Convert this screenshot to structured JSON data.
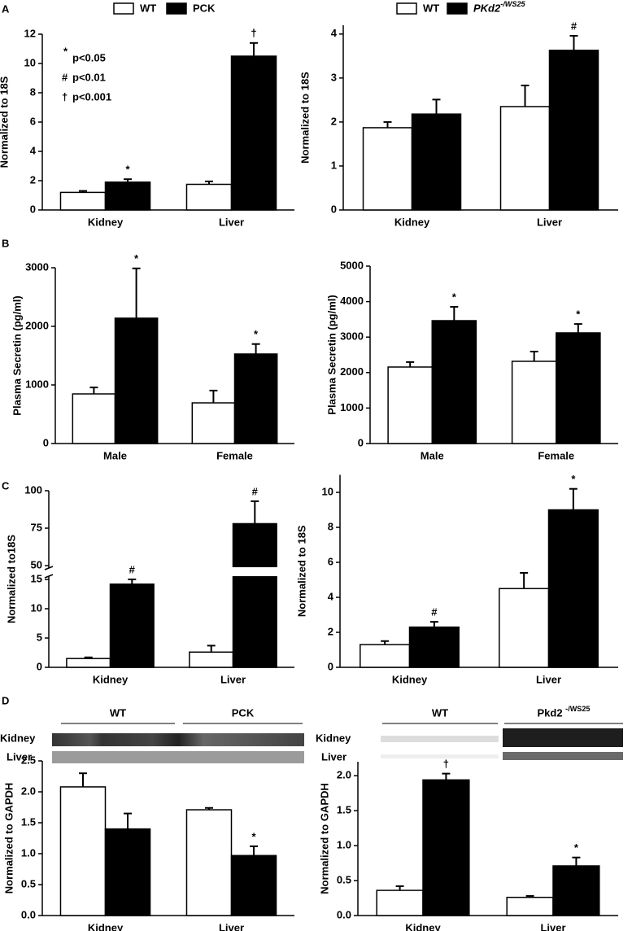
{
  "chart_data": [
    {
      "type": "bar",
      "panel": "A",
      "ylabel": "Normalized to 18S",
      "categories": [
        "Kidney",
        "Liver"
      ],
      "series": [
        {
          "name": "WT",
          "color": "#ffffff",
          "values": [
            1.2,
            1.75
          ],
          "errors": [
            0.1,
            0.2
          ]
        },
        {
          "name": "PCK",
          "color": "#000000",
          "values": [
            1.9,
            10.5
          ],
          "errors": [
            0.2,
            0.9
          ],
          "markers": [
            "*",
            "†"
          ]
        }
      ],
      "ylim": [
        0,
        12
      ],
      "yticks": [
        0,
        2,
        4,
        6,
        8,
        10,
        12
      ],
      "notes": [
        {
          "symbol": "*",
          "text": "p<0.05"
        },
        {
          "symbol": "#",
          "text": "p<0.01"
        },
        {
          "symbol": "†",
          "text": "p<0.001"
        }
      ]
    },
    {
      "type": "bar",
      "ylabel": "Normalized to 18S",
      "categories": [
        "Kidney",
        "Liver"
      ],
      "series": [
        {
          "name": "WT",
          "color": "#ffffff",
          "values": [
            1.87,
            2.35
          ],
          "errors": [
            0.13,
            0.48
          ]
        },
        {
          "name": "PKd2-/WS25",
          "color": "#000000",
          "values": [
            2.18,
            3.63
          ],
          "errors": [
            0.33,
            0.33
          ],
          "markers": [
            null,
            "#"
          ]
        }
      ],
      "ylim": [
        0,
        4.2
      ],
      "yticks": [
        0,
        1,
        2,
        3,
        4
      ]
    },
    {
      "type": "bar",
      "panel": "B",
      "ylabel": "Plasma Secretin (pg/ml)",
      "categories": [
        "Male",
        "Female"
      ],
      "series": [
        {
          "color": "#ffffff",
          "values": [
            847,
            694
          ],
          "errors": [
            110,
            210
          ]
        },
        {
          "color": "#000000",
          "values": [
            2139,
            1528
          ],
          "errors": [
            850,
            170
          ],
          "markers": [
            "*",
            "*"
          ]
        }
      ],
      "ylim": [
        0,
        3000
      ],
      "yticks": [
        0,
        1000,
        2000,
        3000
      ]
    },
    {
      "type": "bar",
      "ylabel": "Plasma Secretin (pg/ml)",
      "categories": [
        "Male",
        "Female"
      ],
      "series": [
        {
          "color": "#ffffff",
          "values": [
            2156,
            2317
          ],
          "errors": [
            140,
            275
          ]
        },
        {
          "color": "#000000",
          "values": [
            3463,
            3119
          ],
          "errors": [
            390,
            250
          ],
          "markers": [
            "*",
            "*"
          ]
        }
      ],
      "ylim": [
        0,
        5000
      ],
      "yticks": [
        0,
        1000,
        2000,
        3000,
        4000,
        5000
      ]
    },
    {
      "type": "bar",
      "panel": "C",
      "ylabel": "Normalized to18S",
      "categories": [
        "Kidney",
        "Liver"
      ],
      "series": [
        {
          "color": "#ffffff",
          "values": [
            1.5,
            2.6
          ],
          "errors": [
            0.2,
            1.1
          ]
        },
        {
          "color": "#000000",
          "values": [
            14.2,
            78
          ],
          "errors": [
            1.0,
            15
          ],
          "markers": [
            "#",
            "#"
          ]
        }
      ],
      "ylim": [
        0,
        100
      ],
      "ybreak": [
        15,
        50
      ],
      "yticks": [
        0,
        5,
        10,
        15,
        50,
        75,
        100
      ]
    },
    {
      "type": "bar",
      "ylabel": "Normalized to 18S",
      "categories": [
        "Kidney",
        "Liver"
      ],
      "series": [
        {
          "color": "#ffffff",
          "values": [
            1.3,
            4.5
          ],
          "errors": [
            0.2,
            0.9
          ]
        },
        {
          "color": "#000000",
          "values": [
            2.3,
            9.0
          ],
          "errors": [
            0.3,
            1.2
          ],
          "markers": [
            "#",
            "*"
          ]
        }
      ],
      "ylim": [
        0,
        11
      ],
      "yticks": [
        0,
        2,
        4,
        6,
        8,
        10
      ]
    },
    {
      "type": "bar",
      "panel": "D",
      "ylabel": "Normalized to GAPDH",
      "categories": [
        "Kidney",
        "Liver"
      ],
      "blot": {
        "groups": [
          "WT",
          "PCK"
        ],
        "rows": [
          "Kidney",
          "Liver"
        ]
      },
      "series": [
        {
          "color": "#ffffff",
          "values": [
            2.08,
            1.71
          ],
          "errors": [
            0.22,
            0.03
          ]
        },
        {
          "color": "#000000",
          "values": [
            1.4,
            0.97
          ],
          "errors": [
            0.25,
            0.15
          ],
          "markers": [
            null,
            "*"
          ]
        }
      ],
      "ylim": [
        0,
        2.5
      ],
      "yticks": [
        {
          "value": 0,
          "label": "0.0"
        },
        {
          "value": 0.5,
          "label": "0.5"
        },
        {
          "value": 1,
          "label": "1.0"
        },
        {
          "value": 1.5,
          "label": "1.5"
        },
        {
          "value": 2,
          "label": "2.0"
        },
        {
          "value": 2.5,
          "label": "2.5"
        }
      ]
    },
    {
      "type": "bar",
      "ylabel": "Normalized to GAPDH",
      "categories": [
        "Kidney",
        "Liver"
      ],
      "blot": {
        "groups": [
          "WT",
          "Pkd2 -/WS25"
        ],
        "rows": [
          "Kidney",
          "Liver"
        ]
      },
      "series": [
        {
          "color": "#ffffff",
          "values": [
            0.36,
            0.26
          ],
          "errors": [
            0.06,
            0.02
          ]
        },
        {
          "color": "#000000",
          "values": [
            1.94,
            0.71
          ],
          "errors": [
            0.09,
            0.12
          ],
          "markers": [
            "†",
            "*"
          ]
        }
      ],
      "ylim": [
        0,
        2.2
      ],
      "yticks": [
        {
          "value": 0,
          "label": "0.0"
        },
        {
          "value": 0.5,
          "label": "0.5"
        },
        {
          "value": 1,
          "label": "1.0"
        },
        {
          "value": 1.5,
          "label": "1.5"
        },
        {
          "value": 2,
          "label": "2.0"
        }
      ]
    }
  ]
}
